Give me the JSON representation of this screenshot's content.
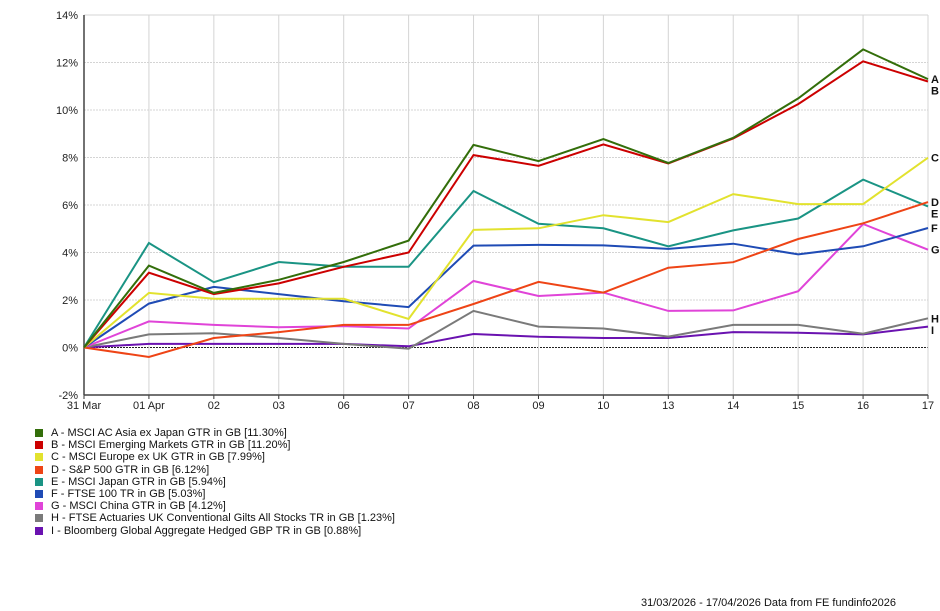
{
  "chart_data": {
    "type": "line",
    "title": "",
    "xlabel": "",
    "ylabel": "",
    "ylim": [
      -2,
      14
    ],
    "yticks": [
      -2,
      0,
      2,
      4,
      6,
      8,
      10,
      12,
      14
    ],
    "ytick_labels": [
      "-2%",
      "0%",
      "2%",
      "4%",
      "6%",
      "8%",
      "10%",
      "12%",
      "14%"
    ],
    "categories": [
      "31 Mar",
      "01 Apr",
      "02",
      "03",
      "06",
      "07",
      "08",
      "09",
      "10",
      "13",
      "14",
      "15",
      "16",
      "17"
    ],
    "grid": true,
    "legend_position": "bottom-left",
    "series": [
      {
        "letter": "A",
        "name": "A - MSCI AC Asia ex Japan GTR in GB [11.30%]",
        "color": "#336e0a",
        "values": [
          0,
          3.45,
          2.3,
          2.85,
          3.6,
          4.5,
          8.53,
          7.85,
          8.78,
          7.77,
          8.83,
          10.49,
          12.55,
          11.3
        ]
      },
      {
        "letter": "B",
        "name": "B - MSCI Emerging Markets GTR in GB [11.20%]",
        "color": "#cc0000",
        "values": [
          0,
          3.15,
          2.25,
          2.7,
          3.4,
          4.0,
          8.1,
          7.65,
          8.55,
          7.75,
          8.8,
          10.25,
          12.05,
          11.2
        ]
      },
      {
        "letter": "C",
        "name": "C - MSCI Europe ex UK GTR in GB [7.99%]",
        "color": "#e2e22e",
        "values": [
          0,
          2.3,
          2.05,
          2.05,
          2.05,
          1.2,
          4.95,
          5.02,
          5.57,
          5.28,
          6.46,
          6.04,
          6.04,
          7.99
        ]
      },
      {
        "letter": "D",
        "name": "D - S&P 500 GTR in GB [6.12%]",
        "color": "#ee4416",
        "values": [
          0,
          -0.4,
          0.4,
          0.65,
          0.95,
          0.95,
          1.83,
          2.76,
          2.31,
          3.36,
          3.59,
          4.57,
          5.23,
          6.12
        ]
      },
      {
        "letter": "E",
        "name": "E - MSCI Japan GTR in GB [5.94%]",
        "color": "#1a9484",
        "values": [
          0,
          4.4,
          2.75,
          3.6,
          3.4,
          3.4,
          6.59,
          5.21,
          5.02,
          4.26,
          4.93,
          5.43,
          7.07,
          5.94
        ]
      },
      {
        "letter": "F",
        "name": "F - FTSE 100 TR in GB [5.03%]",
        "color": "#1f4bb5",
        "values": [
          0,
          1.85,
          2.55,
          2.25,
          1.95,
          1.7,
          4.29,
          4.32,
          4.3,
          4.15,
          4.37,
          3.92,
          4.26,
          5.03
        ]
      },
      {
        "letter": "G",
        "name": "G - MSCI China GTR in GB [4.12%]",
        "color": "#e044d8",
        "values": [
          0,
          1.1,
          0.95,
          0.85,
          0.9,
          0.8,
          2.8,
          2.17,
          2.31,
          1.54,
          1.56,
          2.37,
          5.2,
          4.12
        ]
      },
      {
        "letter": "H",
        "name": "H - FTSE Actuaries UK Conventional Gilts All Stocks TR in GB [1.23%]",
        "color": "#7a7a7a",
        "values": [
          0,
          0.55,
          0.6,
          0.4,
          0.15,
          -0.05,
          1.54,
          0.88,
          0.8,
          0.46,
          0.95,
          0.95,
          0.58,
          1.23
        ]
      },
      {
        "letter": "I",
        "name": "I - Bloomberg Global Aggregate Hedged GBP TR in GB [0.88%]",
        "color": "#6a12b0",
        "values": [
          0,
          0.15,
          0.15,
          0.15,
          0.15,
          0.05,
          0.57,
          0.45,
          0.4,
          0.4,
          0.65,
          0.62,
          0.55,
          0.88
        ]
      }
    ]
  },
  "footer": "31/03/2026 - 17/04/2026 Data from FE fundinfo2026"
}
